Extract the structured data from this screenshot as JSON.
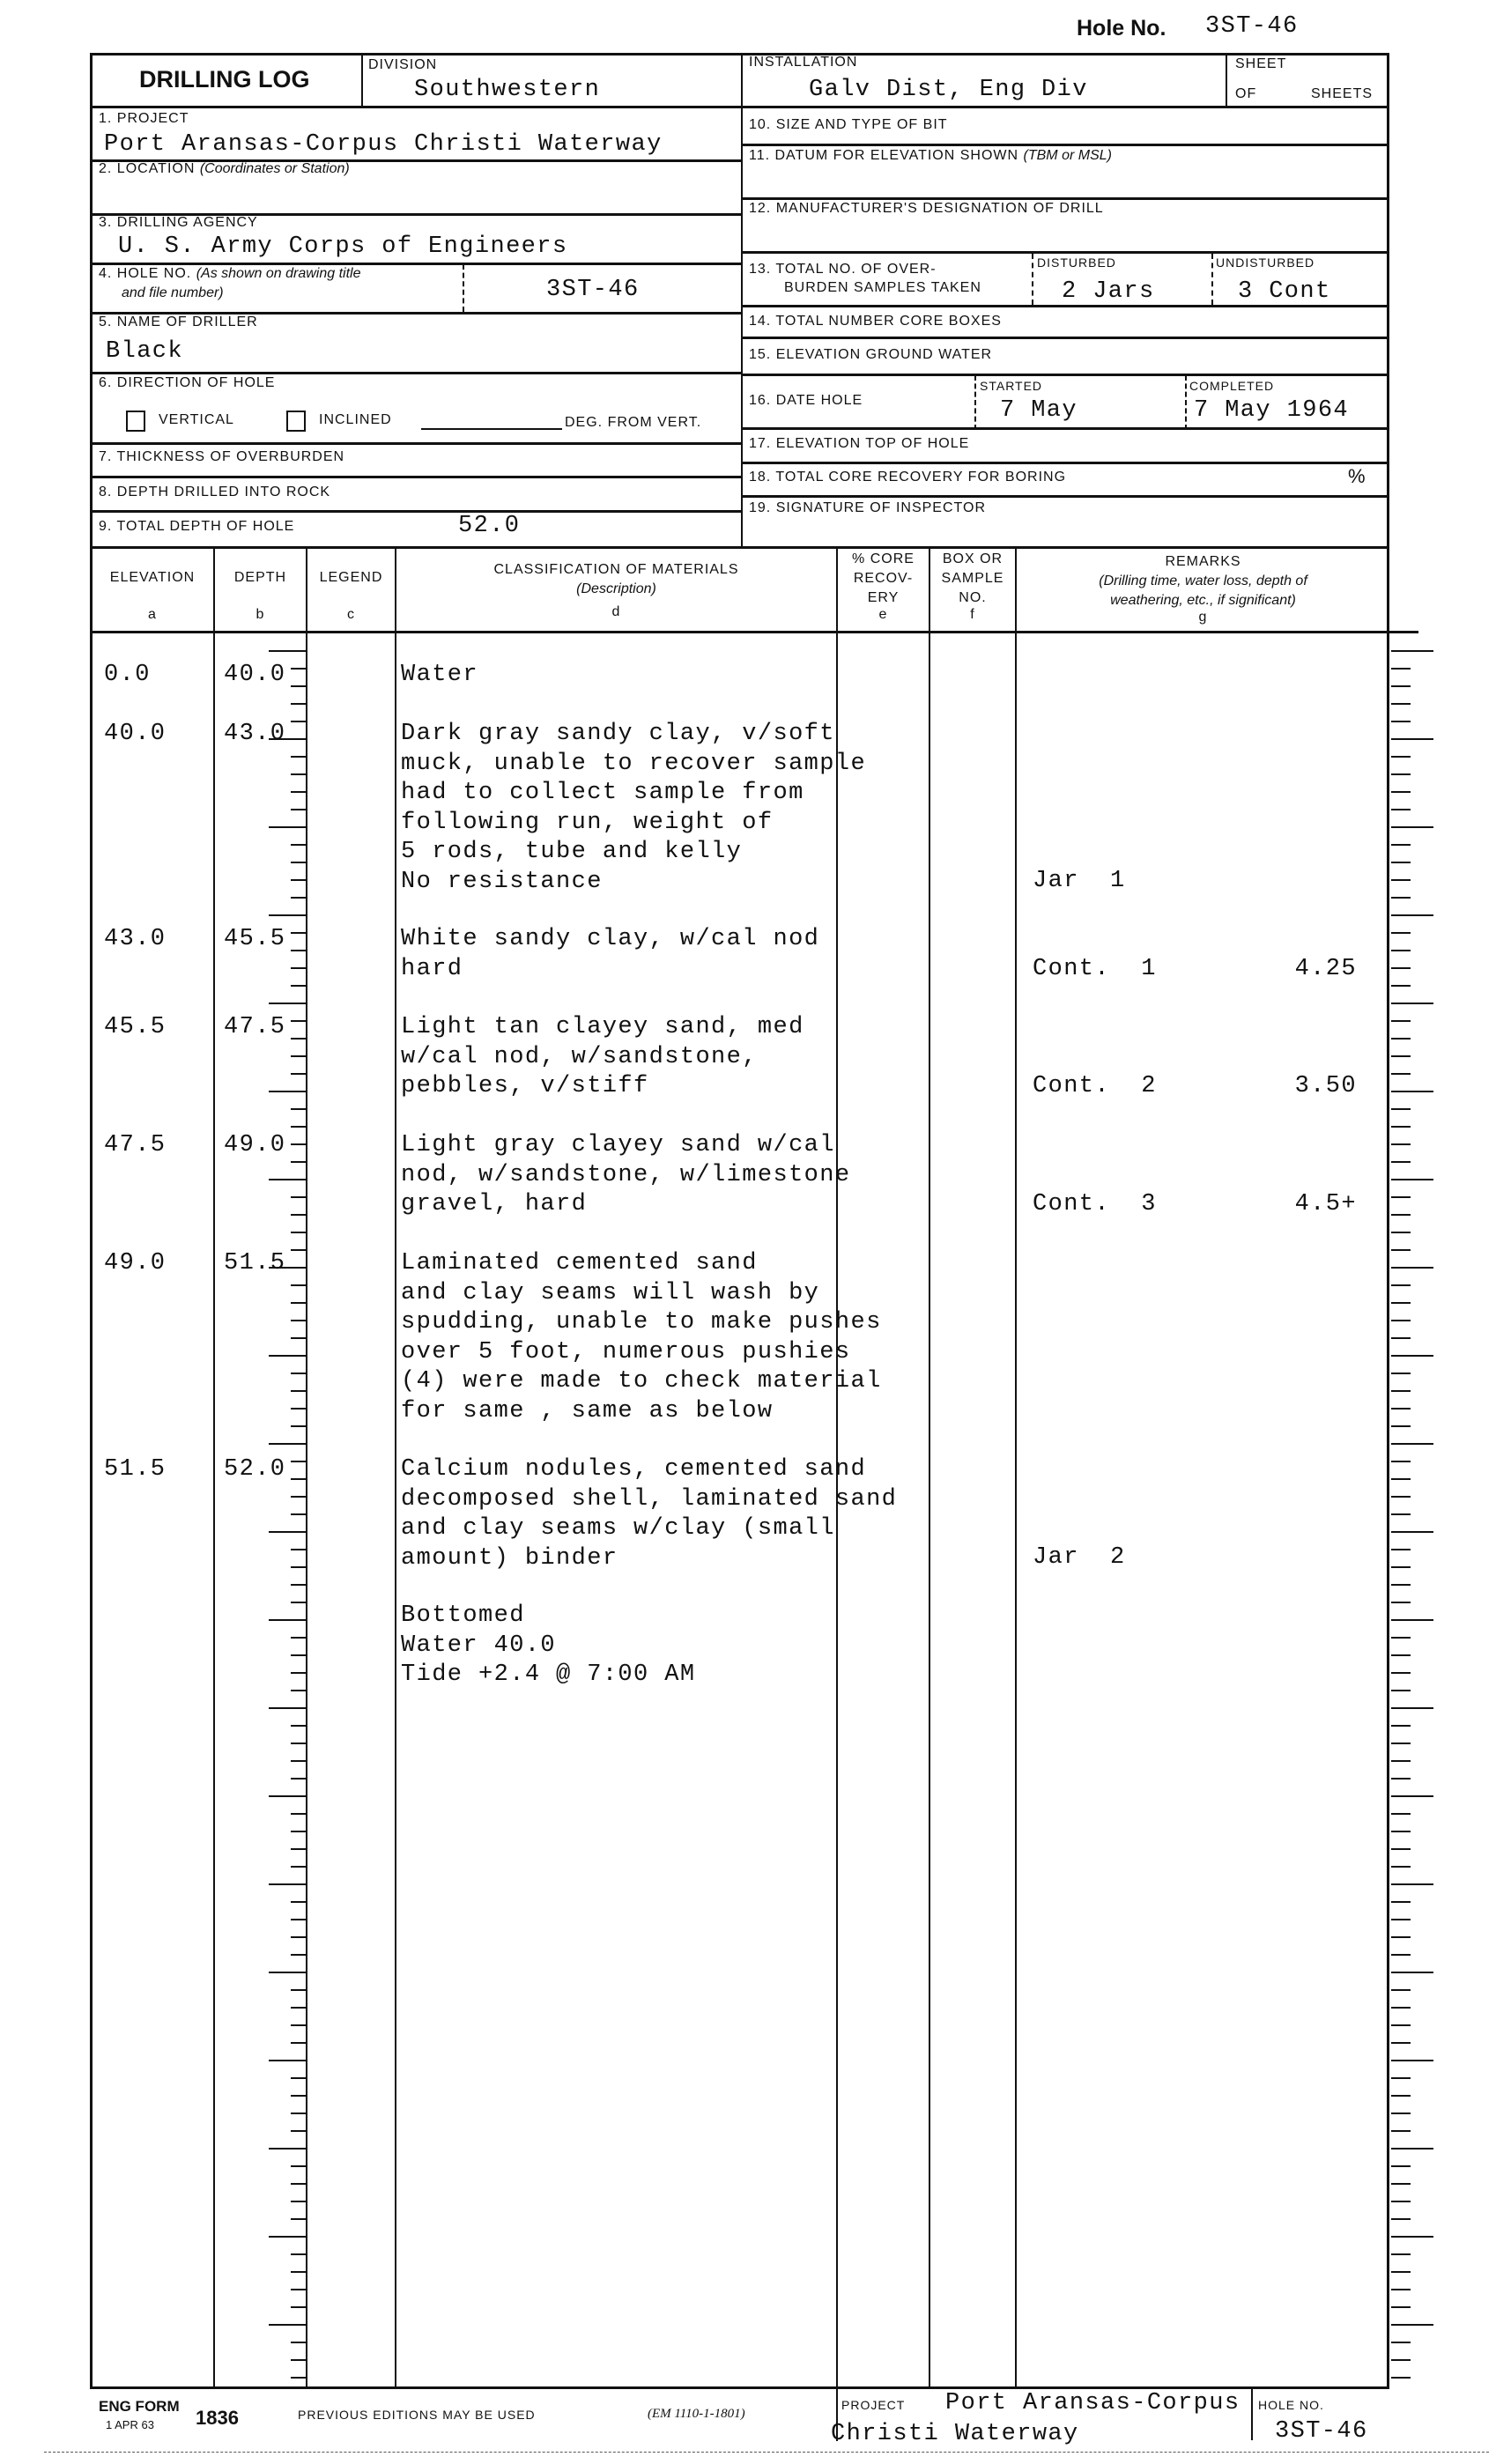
{
  "top_hole": {
    "label": "Hole No.",
    "value": "3ST-46"
  },
  "header": {
    "title": "DRILLING LOG",
    "division_label": "DIVISION",
    "division": "Southwestern",
    "installation_label": "INSTALLATION",
    "installation": "Galv Dist, Eng Div",
    "sheet_label": "SHEET",
    "of_label": "OF",
    "sheets_label": "SHEETS"
  },
  "fields": {
    "project_label": "1. PROJECT",
    "project": "Port Aransas-Corpus Christi Waterway",
    "location_label": "2. LOCATION",
    "location_note": "(Coordinates or Station)",
    "agency_label": "3. DRILLING AGENCY",
    "agency": "U. S. Army Corps of Engineers",
    "hole_label": "4. HOLE NO.",
    "hole_note1": "(As shown on drawing title",
    "hole_note2": "and file number)",
    "hole_no": "3ST-46",
    "driller_label": "5. NAME OF DRILLER",
    "driller": "Black",
    "direction_label": "6. DIRECTION OF HOLE",
    "vertical_label": "VERTICAL",
    "inclined_label": "INCLINED",
    "deg_label": "DEG. FROM VERT.",
    "overburden_label": "7. THICKNESS OF OVERBURDEN",
    "rock_label": "8. DEPTH DRILLED INTO ROCK",
    "total_depth_label": "9. TOTAL DEPTH OF HOLE",
    "total_depth": "52.0",
    "bit_label": "10. SIZE AND TYPE OF BIT",
    "datum_label": "11. DATUM FOR ELEVATION SHOWN",
    "datum_note": "(TBM or MSL)",
    "manufacturer_label": "12. MANUFACTURER'S DESIGNATION OF DRILL",
    "samples_label1": "13. TOTAL NO. OF OVER-",
    "samples_label2": "BURDEN SAMPLES TAKEN",
    "disturbed_label": "DISTURBED",
    "disturbed": "2 Jars",
    "undisturbed_label": "UNDISTURBED",
    "undisturbed": "3 Cont",
    "core_boxes_label": "14. TOTAL NUMBER CORE BOXES",
    "ground_water_label": "15. ELEVATION GROUND WATER",
    "date_label": "16. DATE HOLE",
    "started_label": "STARTED",
    "started": "7 May",
    "completed_label": "COMPLETED",
    "completed": "7 May 1964",
    "top_elev_label": "17. ELEVATION TOP OF HOLE",
    "recovery_label": "18. TOTAL CORE RECOVERY FOR BORING",
    "recovery_unit": "%",
    "inspector_label": "19. SIGNATURE OF INSPECTOR"
  },
  "table_header": {
    "elevation": "ELEVATION",
    "elevation_letter": "a",
    "depth": "DEPTH",
    "depth_letter": "b",
    "legend": "LEGEND",
    "legend_letter": "c",
    "classification": "CLASSIFICATION OF MATERIALS",
    "classification_note": "(Description)",
    "classification_letter": "d",
    "core1": "% CORE",
    "core2": "RECOV-",
    "core3": "ERY",
    "core_letter": "e",
    "box1": "BOX OR",
    "box2": "SAMPLE",
    "box3": "NO.",
    "box_letter": "f",
    "remarks": "REMARKS",
    "remarks_note1": "(Drilling time, water loss, depth of",
    "remarks_note2": "weathering, etc., if significant)",
    "remarks_letter": "g"
  },
  "rows": [
    {
      "elevation": "0.0",
      "depth": "40.0",
      "description": [
        "Water"
      ]
    },
    {
      "elevation": "40.0",
      "depth": "43.0",
      "description": [
        "Dark gray sandy clay, v/soft",
        "muck, unable to recover sample",
        "had to collect sample from",
        "following run, weight of",
        "5 rods, tube and kelly",
        "No resistance"
      ]
    },
    {
      "elevation": "43.0",
      "depth": "45.5",
      "description": [
        "White sandy clay, w/cal nod",
        "hard"
      ]
    },
    {
      "elevation": "45.5",
      "depth": "47.5",
      "description": [
        "Light tan clayey sand, med",
        "w/cal nod, w/sandstone,",
        "pebbles, v/stiff"
      ]
    },
    {
      "elevation": "47.5",
      "depth": "49.0",
      "description": [
        "Light gray clayey sand w/cal",
        "nod, w/sandstone, w/limestone",
        "gravel, hard"
      ]
    },
    {
      "elevation": "49.0",
      "depth": "51.5",
      "description": [
        "Laminated cemented sand",
        "and clay seams will wash by",
        "spudding, unable to make pushes",
        "over 5 foot, numerous pushies",
        "(4) were made to check material",
        "for same , same as below"
      ]
    },
    {
      "elevation": "51.5",
      "depth": "52.0",
      "description": [
        "Calcium nodules, cemented sand",
        "decomposed shell, laminated sand",
        "and clay seams w/clay (small",
        "amount) binder"
      ]
    }
  ],
  "notes": [
    "Bottomed",
    "Water 40.0",
    "Tide +2.4 @ 7:00 AM"
  ],
  "remarks": [
    {
      "sample": "Jar  1",
      "value": ""
    },
    {
      "sample": "Cont.  1",
      "value": "4.25"
    },
    {
      "sample": "Cont.  2",
      "value": "3.50"
    },
    {
      "sample": "Cont.  3",
      "value": "4.5+"
    },
    {
      "sample": "Jar  2",
      "value": ""
    }
  ],
  "footer": {
    "form_label": "ENG FORM",
    "form_date": "1 APR 63",
    "form_number": "1836",
    "previous": "PREVIOUS EDITIONS MAY BE USED",
    "em": "(EM 1110-1-1801)",
    "project_label": "PROJECT",
    "project_line1": "Port Aransas-Corpus",
    "project_line2": "Christi Waterway",
    "hole_label": "HOLE NO.",
    "hole_no": "3ST-46"
  }
}
